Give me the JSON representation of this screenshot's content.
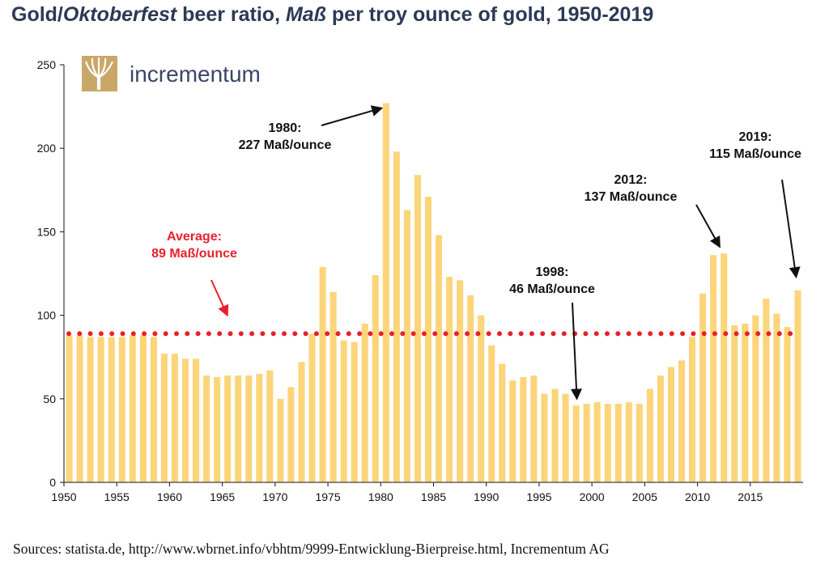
{
  "title": {
    "part1": "Gold/",
    "part2": "Oktoberfest",
    "part3": " beer ratio, ",
    "part4": "Maß",
    "part5": " per troy ounce of gold, 1950-2019"
  },
  "logo": {
    "text": "incrementum",
    "icon": "tree-icon"
  },
  "source": "Sources: statista.de, http://www.wbrnet.info/vbhtm/9999-Entwicklung-Bierpreise.html, Incrementum AG",
  "colors": {
    "bar": "#fcd57a",
    "average": "#e8202a",
    "title": "#2b3a55",
    "axis": "#111111"
  },
  "chart_data": {
    "type": "bar",
    "title": "Gold/Oktoberfest beer ratio, Maß per troy ounce of gold, 1950-2019",
    "x": [
      1950,
      1951,
      1952,
      1953,
      1954,
      1955,
      1956,
      1957,
      1958,
      1959,
      1960,
      1961,
      1962,
      1963,
      1964,
      1965,
      1966,
      1967,
      1968,
      1969,
      1970,
      1971,
      1972,
      1973,
      1974,
      1975,
      1976,
      1977,
      1978,
      1979,
      1980,
      1981,
      1982,
      1983,
      1984,
      1985,
      1986,
      1987,
      1988,
      1989,
      1990,
      1991,
      1992,
      1993,
      1994,
      1995,
      1996,
      1997,
      1998,
      1999,
      2000,
      2001,
      2002,
      2003,
      2004,
      2005,
      2006,
      2007,
      2008,
      2009,
      2010,
      2011,
      2012,
      2013,
      2014,
      2015,
      2016,
      2017,
      2018,
      2019
    ],
    "values": [
      88,
      88,
      87,
      87,
      87,
      87,
      88,
      88,
      87,
      77,
      77,
      74,
      74,
      64,
      63,
      64,
      64,
      64,
      65,
      67,
      50,
      57,
      72,
      89,
      129,
      114,
      85,
      84,
      95,
      124,
      227,
      198,
      163,
      184,
      171,
      148,
      123,
      121,
      112,
      100,
      82,
      71,
      61,
      63,
      64,
      53,
      56,
      53,
      46,
      47,
      48,
      47,
      47,
      48,
      47,
      56,
      64,
      69,
      73,
      87,
      113,
      136,
      137,
      94,
      95,
      100,
      110,
      101,
      93,
      115
    ],
    "xticks": [
      "1950",
      "1955",
      "1960",
      "1965",
      "1970",
      "1975",
      "1980",
      "1985",
      "1990",
      "1995",
      "2000",
      "2005",
      "2010",
      "2015"
    ],
    "yticks": [
      "0",
      "50",
      "100",
      "150",
      "200",
      "250"
    ],
    "ylim": [
      0,
      250
    ],
    "average": {
      "value": 89,
      "label_line1": "Average:",
      "label_line2": "89 Maß/ounce"
    },
    "annotations": [
      {
        "year": 1980,
        "line1": "1980:",
        "line2": "227 Maß/ounce"
      },
      {
        "year": 1998,
        "line1": "1998:",
        "line2": "46 Maß/ounce"
      },
      {
        "year": 2012,
        "line1": "2012:",
        "line2": "137 Maß/ounce"
      },
      {
        "year": 2019,
        "line1": "2019:",
        "line2": "115 Maß/ounce"
      }
    ],
    "grid": false,
    "legend": "none"
  }
}
